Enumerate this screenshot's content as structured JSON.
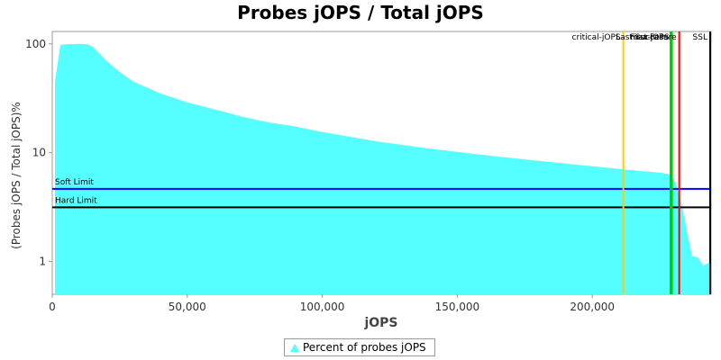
{
  "chart_data": {
    "type": "area",
    "title": "Probes jOPS / Total jOPS",
    "xlabel": "jOPS",
    "ylabel": "(Probes jOPS / Total jOPS)%",
    "x_scale": "linear",
    "y_scale": "log",
    "xlim": [
      0,
      244000
    ],
    "ylim": [
      0.5,
      130
    ],
    "x_ticks": [
      0,
      50000,
      100000,
      150000,
      200000
    ],
    "x_tick_labels": [
      "0",
      "50,000",
      "100,000",
      "150,000",
      "200,000"
    ],
    "y_ticks": [
      1,
      10,
      100
    ],
    "y_tick_labels": [
      "1",
      "10",
      "100"
    ],
    "grid": false,
    "legend_position": "bottom-center",
    "series": [
      {
        "name": "Percent of probes jOPS",
        "color": "#55ffff",
        "x": [
          1000,
          3000,
          5000,
          10000,
          13000,
          15000,
          20000,
          25000,
          30000,
          40000,
          50000,
          60000,
          70000,
          80000,
          90000,
          100000,
          120000,
          140000,
          160000,
          180000,
          200000,
          215000,
          225000,
          229000,
          231000,
          233000,
          235000,
          237000,
          239000,
          241000,
          243000,
          244000
        ],
        "y": [
          45,
          98,
          99,
          100,
          99,
          94,
          70,
          55,
          45,
          35,
          29,
          25,
          21.5,
          19,
          17.4,
          15.5,
          12.7,
          10.9,
          9.5,
          8.4,
          7.5,
          6.9,
          6.55,
          6.3,
          5.1,
          3.5,
          1.9,
          1.12,
          1.1,
          0.92,
          0.97,
          1.0
        ]
      }
    ],
    "horizontal_lines": [
      {
        "label": "Soft Limit",
        "y": 4.65,
        "color": "#0000ff"
      },
      {
        "label": "Hard Limit",
        "y": 3.15,
        "color": "#000000"
      }
    ],
    "vertical_lines": [
      {
        "label": "critical-jOPS",
        "x": 211500,
        "color": "#ffcc00"
      },
      {
        "label": "Last Success",
        "x": 229000,
        "color": "#00cc00"
      },
      {
        "label": "max-jOPS",
        "x": 229500,
        "color": "#00cc00"
      },
      {
        "label": "First Failure",
        "x": 232200,
        "color": "#ff0000"
      },
      {
        "label": "SSL",
        "x": 243800,
        "color": "#000000"
      }
    ]
  }
}
